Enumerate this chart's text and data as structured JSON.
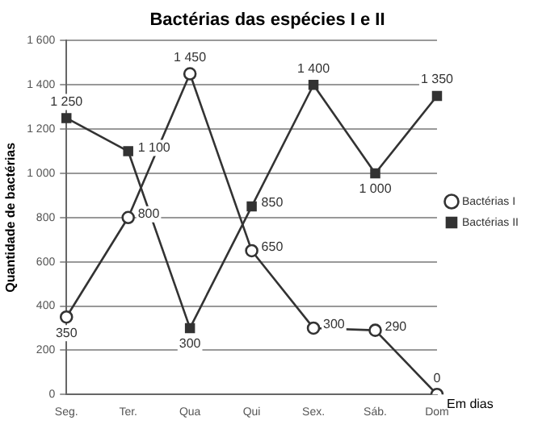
{
  "chart_data": {
    "type": "line",
    "title": "Bactérias das espécies I e II",
    "xlabel": "Em dias",
    "ylabel": "Quantidade de bactérias",
    "categories": [
      "Seg.",
      "Ter.",
      "Qua",
      "Qui",
      "Sex.",
      "Sáb.",
      "Dom"
    ],
    "series": [
      {
        "name": "Bactérias I",
        "color": "#333333",
        "marker": "circle",
        "values": [
          350,
          800,
          1450,
          650,
          300,
          290,
          0
        ],
        "value_labels": [
          "350",
          "800",
          "1 450",
          "650",
          "300",
          "290",
          "0"
        ]
      },
      {
        "name": "Bactérias II",
        "color": "#333333",
        "marker": "square",
        "values": [
          1250,
          1100,
          300,
          850,
          1400,
          1000,
          1350
        ],
        "value_labels": [
          "1 250",
          "1 100",
          "300",
          "850",
          "1 400",
          "1 000",
          "1 350"
        ]
      }
    ],
    "ylim": [
      0,
      1600
    ],
    "yticks": [
      0,
      200,
      400,
      600,
      800,
      {
        "value": 1000,
        "label": "1 000"
      },
      {
        "value": 1200,
        "label": "1 200"
      },
      {
        "value": 1400,
        "label": "1 400"
      },
      {
        "value": 1600,
        "label": "1 600"
      }
    ],
    "grid": "y",
    "legend": "right"
  }
}
